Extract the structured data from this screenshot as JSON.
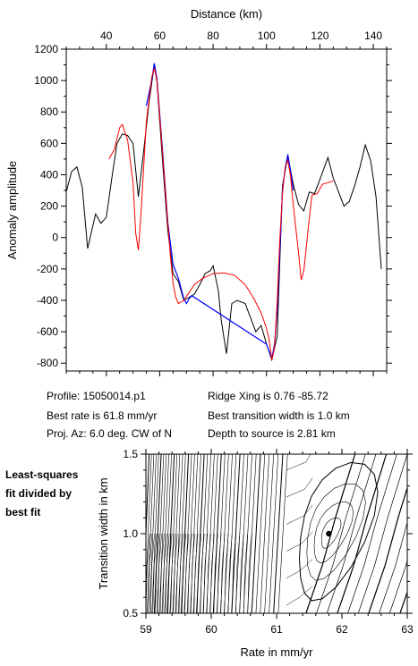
{
  "chart_data": [
    {
      "type": "line",
      "title": "",
      "xlabel": "Distance (km)",
      "ylabel": "Anomaly amplitude",
      "xlim": [
        25,
        145
      ],
      "ylim": [
        -850,
        1200
      ],
      "x_ticks": [
        40,
        60,
        80,
        100,
        120,
        140
      ],
      "y_ticks": [
        -800,
        -600,
        -400,
        -200,
        0,
        200,
        400,
        600,
        800,
        1000,
        1200
      ],
      "series": [
        {
          "color": "#000000",
          "points": [
            [
              25,
              290
            ],
            [
              27,
              420
            ],
            [
              29,
              450
            ],
            [
              31,
              320
            ],
            [
              33,
              -70
            ],
            [
              36,
              150
            ],
            [
              38,
              90
            ],
            [
              40,
              130
            ],
            [
              42,
              370
            ],
            [
              44,
              600
            ],
            [
              46,
              660
            ],
            [
              48,
              650
            ],
            [
              50,
              600
            ],
            [
              52,
              260
            ],
            [
              54,
              550
            ],
            [
              56,
              860
            ],
            [
              58,
              1100
            ],
            [
              59,
              990
            ],
            [
              61,
              500
            ],
            [
              63,
              50
            ],
            [
              65,
              -230
            ],
            [
              67,
              -280
            ],
            [
              69,
              -400
            ],
            [
              71,
              -380
            ],
            [
              73,
              -360
            ],
            [
              75,
              -300
            ],
            [
              77,
              -230
            ],
            [
              79,
              -210
            ],
            [
              80,
              -180
            ],
            [
              82,
              -340
            ],
            [
              83,
              -520
            ],
            [
              85,
              -740
            ],
            [
              87,
              -420
            ],
            [
              89,
              -400
            ],
            [
              92,
              -420
            ],
            [
              94,
              -510
            ],
            [
              96,
              -600
            ],
            [
              98,
              -560
            ],
            [
              100,
              -680
            ],
            [
              102,
              -780
            ],
            [
              104,
              -630
            ],
            [
              106,
              330
            ],
            [
              108,
              520
            ],
            [
              110,
              340
            ],
            [
              112,
              210
            ],
            [
              114,
              170
            ],
            [
              116,
              290
            ],
            [
              118,
              280
            ],
            [
              120,
              370
            ],
            [
              123,
              510
            ],
            [
              125,
              380
            ],
            [
              127,
              290
            ],
            [
              129,
              200
            ],
            [
              131,
              230
            ],
            [
              133,
              330
            ],
            [
              135,
              450
            ],
            [
              137,
              590
            ],
            [
              139,
              490
            ],
            [
              141,
              260
            ],
            [
              143,
              -200
            ]
          ]
        },
        {
          "color": "#0000ff",
          "points": [
            [
              55,
              840
            ],
            [
              57,
              1000
            ],
            [
              58,
              1110
            ],
            [
              59,
              1010
            ],
            [
              61,
              570
            ],
            [
              63,
              100
            ],
            [
              65,
              -170
            ],
            [
              67,
              -260
            ],
            [
              69,
              -390
            ],
            [
              70,
              -420
            ],
            [
              71,
              -390
            ],
            [
              72,
              -370
            ],
            [
              100,
              -680
            ],
            [
              102,
              -770
            ],
            [
              103,
              -680
            ],
            [
              104,
              -460
            ],
            [
              106,
              300
            ],
            [
              107,
              440
            ],
            [
              108,
              530
            ],
            [
              109,
              420
            ],
            [
              110,
              300
            ]
          ]
        },
        {
          "color": "#ff0000",
          "points": [
            [
              41,
              500
            ],
            [
              43,
              560
            ],
            [
              45,
              700
            ],
            [
              46,
              720
            ],
            [
              48,
              620
            ],
            [
              50,
              350
            ],
            [
              51,
              30
            ],
            [
              52,
              -80
            ],
            [
              53,
              150
            ],
            [
              55,
              740
            ],
            [
              57,
              1020
            ],
            [
              58,
              1080
            ],
            [
              59,
              1000
            ],
            [
              61,
              550
            ],
            [
              63,
              100
            ],
            [
              64,
              -120
            ],
            [
              65,
              -290
            ],
            [
              66,
              -380
            ],
            [
              67,
              -420
            ],
            [
              69,
              -400
            ],
            [
              71,
              -350
            ],
            [
              73,
              -300
            ],
            [
              76,
              -260
            ],
            [
              80,
              -230
            ],
            [
              84,
              -225
            ],
            [
              88,
              -240
            ],
            [
              92,
              -300
            ],
            [
              95,
              -380
            ],
            [
              98,
              -480
            ],
            [
              100,
              -580
            ],
            [
              101,
              -650
            ],
            [
              102,
              -780
            ],
            [
              103,
              -700
            ],
            [
              104,
              -400
            ],
            [
              105,
              0
            ],
            [
              106,
              280
            ],
            [
              107,
              450
            ],
            [
              108,
              490
            ],
            [
              109,
              390
            ],
            [
              110,
              210
            ],
            [
              112,
              -100
            ],
            [
              113,
              -270
            ],
            [
              114,
              -210
            ],
            [
              116,
              120
            ],
            [
              117,
              270
            ],
            [
              119,
              280
            ],
            [
              121,
              340
            ],
            [
              123,
              350
            ],
            [
              125,
              360
            ]
          ]
        }
      ]
    },
    {
      "type": "contour",
      "title": "",
      "xlabel": "Rate in mm/yr",
      "ylabel": "Transition width in km",
      "xlim": [
        59,
        63
      ],
      "ylim": [
        0.5,
        1.5
      ],
      "x_ticks": [
        59,
        60,
        61,
        62,
        63
      ],
      "y_ticks": [
        0.5,
        1.0,
        1.5
      ],
      "best_fit": {
        "rate": 61.8,
        "transition_width": 1.0
      }
    }
  ],
  "info": {
    "profile": "Profile: 15050014.p1",
    "best_rate": "Best rate is 61.8 mm/yr",
    "proj_az": "Proj. Az: 6.0 deg. CW of N",
    "ridge_xing": "Ridge Xing is 0.76 -85.72",
    "best_width": "Best transition width is 1.0 km",
    "depth": "Depth to source is   2.81 km"
  },
  "side_note": {
    "line1": "Least-squares",
    "line2": "fit divided by",
    "line3": "best fit"
  }
}
